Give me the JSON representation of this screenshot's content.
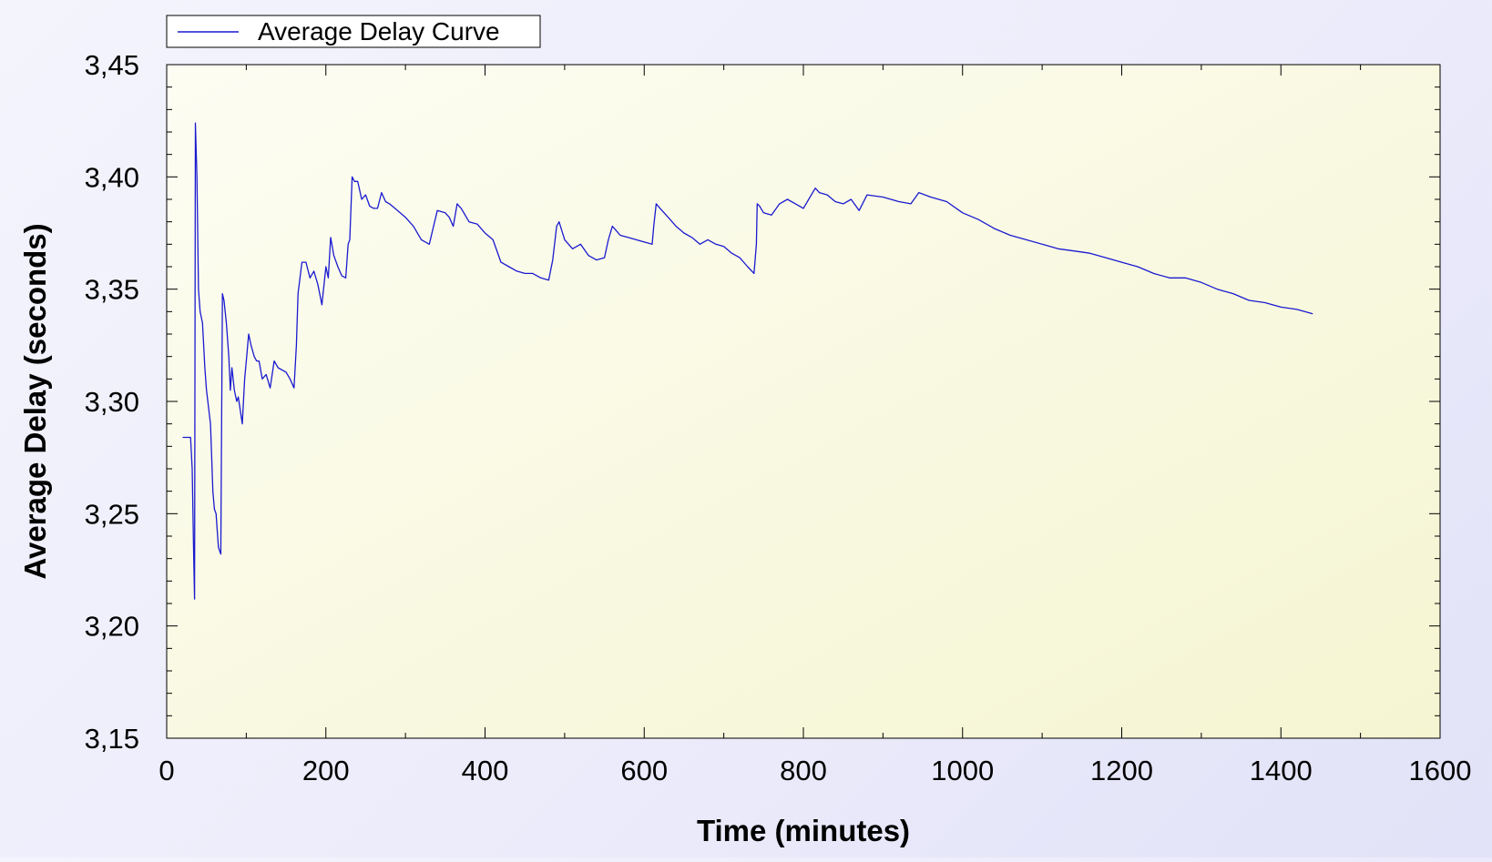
{
  "chart_data": {
    "type": "line",
    "title": "",
    "xlabel": "Time (minutes)",
    "ylabel": "Average Delay (seconds)",
    "xlim": [
      0,
      1600
    ],
    "ylim": [
      3.15,
      3.45
    ],
    "x_ticks": [
      "0",
      "200",
      "400",
      "600",
      "800",
      "1000",
      "1200",
      "1400",
      "1600"
    ],
    "y_ticks": [
      "3,45",
      "3,40",
      "3,35",
      "3,30",
      "3,25",
      "3,20",
      "3,15"
    ],
    "legend": {
      "position": "top-left",
      "entries": [
        "Average Delay Curve"
      ]
    },
    "grid": false,
    "colors": {
      "plot_bg_light": "#fdfdf3",
      "plot_bg_dark": "#f5f5d2",
      "line": "#1a1ad0"
    },
    "series": [
      {
        "name": "Average Delay Curve",
        "x": [
          20,
          30,
          32,
          34,
          35,
          36,
          38,
          40,
          42,
          45,
          48,
          50,
          55,
          58,
          60,
          62,
          65,
          68,
          70,
          72,
          75,
          78,
          80,
          82,
          85,
          88,
          90,
          95,
          98,
          100,
          103,
          106,
          110,
          113,
          116,
          120,
          125,
          130,
          135,
          140,
          150,
          155,
          160,
          163,
          165,
          170,
          175,
          180,
          185,
          190,
          195,
          200,
          203,
          206,
          210,
          215,
          220,
          225,
          228,
          230,
          233,
          236,
          240,
          245,
          250,
          255,
          260,
          265,
          270,
          275,
          280,
          290,
          300,
          310,
          320,
          330,
          340,
          350,
          355,
          360,
          365,
          370,
          380,
          390,
          400,
          410,
          420,
          430,
          440,
          450,
          460,
          470,
          480,
          485,
          490,
          493,
          500,
          510,
          520,
          530,
          540,
          550,
          555,
          560,
          570,
          580,
          590,
          600,
          610,
          612,
          615,
          620,
          630,
          640,
          650,
          660,
          670,
          680,
          690,
          700,
          710,
          720,
          730,
          738,
          741,
          742,
          745,
          750,
          760,
          770,
          780,
          790,
          800,
          810,
          815,
          820,
          830,
          840,
          850,
          860,
          870,
          880,
          900,
          920,
          935,
          945,
          960,
          980,
          1000,
          1020,
          1040,
          1060,
          1080,
          1100,
          1120,
          1140,
          1160,
          1180,
          1200,
          1220,
          1240,
          1260,
          1280,
          1300,
          1320,
          1340,
          1360,
          1380,
          1400,
          1420,
          1440
        ],
        "values": [
          3.284,
          3.284,
          3.27,
          3.23,
          3.212,
          3.424,
          3.4,
          3.35,
          3.34,
          3.335,
          3.315,
          3.305,
          3.29,
          3.26,
          3.252,
          3.25,
          3.235,
          3.232,
          3.348,
          3.345,
          3.335,
          3.32,
          3.305,
          3.315,
          3.305,
          3.3,
          3.302,
          3.29,
          3.31,
          3.318,
          3.33,
          3.325,
          3.32,
          3.318,
          3.318,
          3.31,
          3.312,
          3.306,
          3.318,
          3.315,
          3.313,
          3.31,
          3.306,
          3.325,
          3.348,
          3.362,
          3.362,
          3.355,
          3.358,
          3.352,
          3.343,
          3.36,
          3.355,
          3.373,
          3.365,
          3.36,
          3.356,
          3.355,
          3.37,
          3.372,
          3.4,
          3.398,
          3.398,
          3.39,
          3.392,
          3.387,
          3.386,
          3.386,
          3.393,
          3.389,
          3.388,
          3.385,
          3.382,
          3.378,
          3.372,
          3.37,
          3.385,
          3.384,
          3.382,
          3.378,
          3.388,
          3.386,
          3.38,
          3.379,
          3.375,
          3.372,
          3.362,
          3.36,
          3.358,
          3.357,
          3.357,
          3.355,
          3.354,
          3.363,
          3.378,
          3.38,
          3.372,
          3.368,
          3.37,
          3.365,
          3.363,
          3.364,
          3.372,
          3.378,
          3.374,
          3.373,
          3.372,
          3.371,
          3.37,
          3.378,
          3.388,
          3.386,
          3.382,
          3.378,
          3.375,
          3.373,
          3.37,
          3.372,
          3.37,
          3.369,
          3.366,
          3.364,
          3.36,
          3.357,
          3.37,
          3.388,
          3.387,
          3.384,
          3.383,
          3.388,
          3.39,
          3.388,
          3.386,
          3.392,
          3.395,
          3.393,
          3.392,
          3.389,
          3.388,
          3.39,
          3.385,
          3.392,
          3.391,
          3.389,
          3.388,
          3.393,
          3.391,
          3.389,
          3.384,
          3.381,
          3.377,
          3.374,
          3.372,
          3.37,
          3.368,
          3.367,
          3.366,
          3.364,
          3.362,
          3.36,
          3.357,
          3.355,
          3.355,
          3.353,
          3.35,
          3.348,
          3.345,
          3.344,
          3.342,
          3.341,
          3.339
        ]
      }
    ]
  }
}
